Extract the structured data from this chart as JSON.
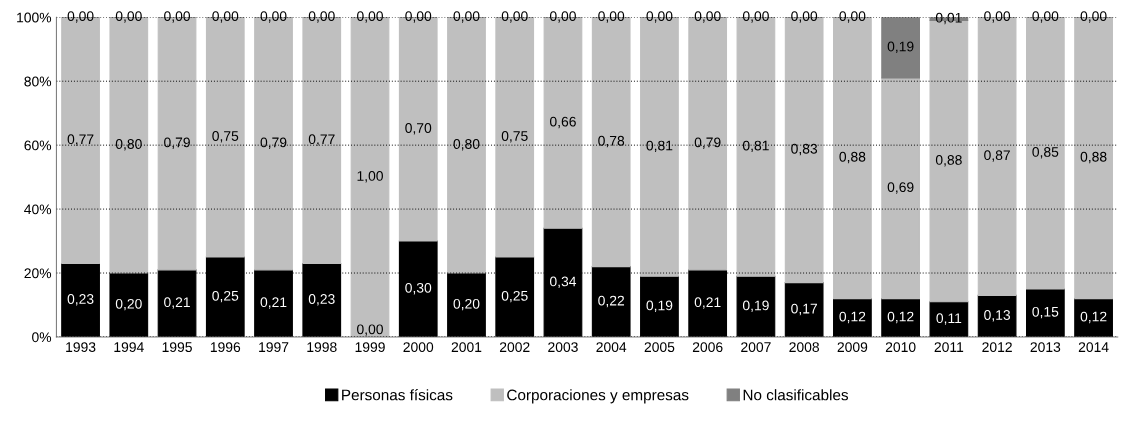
{
  "chart_data": {
    "type": "bar",
    "stacked": true,
    "categories": [
      "1993",
      "1994",
      "1995",
      "1996",
      "1997",
      "1998",
      "1999",
      "2000",
      "2001",
      "2002",
      "2003",
      "2004",
      "2005",
      "2006",
      "2007",
      "2008",
      "2009",
      "2010",
      "2011",
      "2012",
      "2013",
      "2014"
    ],
    "series": [
      {
        "name": "Personas físicas",
        "color": "#000000",
        "values": [
          0.23,
          0.2,
          0.21,
          0.25,
          0.21,
          0.23,
          0.0,
          0.3,
          0.2,
          0.25,
          0.34,
          0.22,
          0.19,
          0.21,
          0.19,
          0.17,
          0.12,
          0.12,
          0.11,
          0.13,
          0.15,
          0.12
        ],
        "value_labels": [
          "0,23",
          "0,20",
          "0,21",
          "0,25",
          "0,21",
          "0,23",
          "0,00",
          "0,30",
          "0,20",
          "0,25",
          "0,34",
          "0,22",
          "0,19",
          "0,21",
          "0,19",
          "0,17",
          "0,12",
          "0,12",
          "0,11",
          "0,13",
          "0,15",
          "0,12"
        ]
      },
      {
        "name": "Corporaciones y empresas",
        "color": "#bfbfbf",
        "values": [
          0.77,
          0.8,
          0.79,
          0.75,
          0.79,
          0.77,
          1.0,
          0.7,
          0.8,
          0.75,
          0.66,
          0.78,
          0.81,
          0.79,
          0.81,
          0.83,
          0.88,
          0.69,
          0.88,
          0.87,
          0.85,
          0.88
        ],
        "value_labels": [
          "0,77",
          "0,80",
          "0,79",
          "0,75",
          "0,79",
          "0,77",
          "1,00",
          "0,70",
          "0,80",
          "0,75",
          "0,66",
          "0,78",
          "0,81",
          "0,79",
          "0,81",
          "0,83",
          "0,88",
          "0,69",
          "0,88",
          "0,87",
          "0,85",
          "0,88"
        ]
      },
      {
        "name": "No clasificables",
        "color": "#808080",
        "values": [
          0.0,
          0.0,
          0.0,
          0.0,
          0.0,
          0.0,
          0.0,
          0.0,
          0.0,
          0.0,
          0.0,
          0.0,
          0.0,
          0.0,
          0.0,
          0.0,
          0.0,
          0.19,
          0.01,
          0.0,
          0.0,
          0.0
        ],
        "value_labels": [
          "0,00",
          "0,00",
          "0,00",
          "0,00",
          "0,00",
          "0,00",
          "0,00",
          "0,00",
          "0,00",
          "0,00",
          "0,00",
          "0,00",
          "0,00",
          "0,00",
          "0,00",
          "0,00",
          "0,00",
          "0,19",
          "0,01",
          "0,00",
          "0,00",
          "0,00"
        ]
      }
    ],
    "ylim": [
      0,
      1
    ],
    "yticks": [
      {
        "value": 0,
        "label": "0%"
      },
      {
        "value": 0.2,
        "label": "20%"
      },
      {
        "value": 0.4,
        "label": "40%"
      },
      {
        "value": 0.6,
        "label": "60%"
      },
      {
        "value": 0.8,
        "label": "80%"
      },
      {
        "value": 1,
        "label": "100%"
      }
    ],
    "grid": "y",
    "legend": "bottom"
  }
}
